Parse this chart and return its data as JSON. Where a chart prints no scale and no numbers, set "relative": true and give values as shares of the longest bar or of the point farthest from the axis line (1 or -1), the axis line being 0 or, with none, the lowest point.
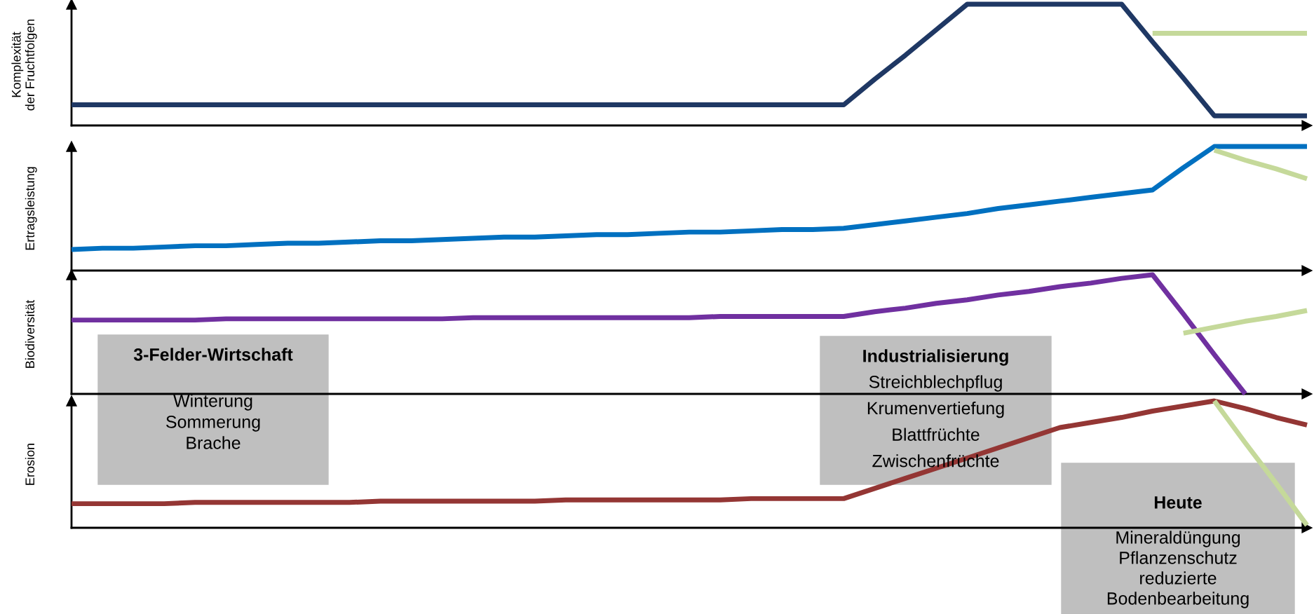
{
  "chart_data": [
    {
      "type": "line",
      "relative": true,
      "ylabel": "Komplexität\nder Fruchtfolgen",
      "categories": [
        null,
        null,
        null,
        null,
        null,
        null,
        null,
        null,
        null,
        null,
        null,
        null,
        null,
        null,
        null,
        null,
        null,
        null,
        null,
        null,
        null,
        null,
        null,
        null,
        null,
        null,
        null,
        null,
        null,
        null,
        null,
        null,
        null,
        null,
        null,
        null,
        null,
        null,
        null,
        null,
        null
      ],
      "marker": "none",
      "line_style": "solid",
      "series": [
        {
          "color": "#1f3864",
          "values": [
            0.17,
            0.17,
            0.17,
            0.17,
            0.17,
            0.17,
            0.17,
            0.17,
            0.17,
            0.17,
            0.17,
            0.17,
            0.17,
            0.17,
            0.17,
            0.17,
            0.17,
            0.17,
            0.17,
            0.17,
            0.17,
            0.17,
            0.17,
            0.17,
            0.17,
            0.17,
            0.38,
            0.58,
            0.79,
            1,
            1,
            1,
            1,
            1,
            1,
            0.69,
            0.39,
            0.08,
            0.08,
            0.08,
            0.08
          ]
        },
        {
          "color": "#c5d99a",
          "values": [
            null,
            null,
            null,
            null,
            null,
            null,
            null,
            null,
            null,
            null,
            null,
            null,
            null,
            null,
            null,
            null,
            null,
            null,
            null,
            null,
            null,
            null,
            null,
            null,
            null,
            null,
            null,
            null,
            null,
            null,
            null,
            null,
            null,
            null,
            null,
            0.76,
            0.76,
            0.76,
            0.76,
            0.76,
            0.76
          ]
        }
      ]
    },
    {
      "type": "line",
      "relative": true,
      "ylabel": "Ertragsleistung",
      "categories": [
        null,
        null,
        null,
        null,
        null,
        null,
        null,
        null,
        null,
        null,
        null,
        null,
        null,
        null,
        null,
        null,
        null,
        null,
        null,
        null,
        null,
        null,
        null,
        null,
        null,
        null,
        null,
        null,
        null,
        null,
        null,
        null,
        null,
        null,
        null,
        null,
        null,
        null,
        null,
        null,
        null
      ],
      "marker": "none",
      "line_style": "solid",
      "series": [
        {
          "color": "#0070c0",
          "values": [
            0.17,
            0.18,
            0.18,
            0.19,
            0.2,
            0.2,
            0.21,
            0.22,
            0.22,
            0.23,
            0.24,
            0.24,
            0.25,
            0.26,
            0.27,
            0.27,
            0.28,
            0.29,
            0.29,
            0.3,
            0.31,
            0.31,
            0.32,
            0.33,
            0.33,
            0.34,
            0.37,
            0.4,
            0.43,
            0.46,
            0.5,
            0.53,
            0.56,
            0.59,
            0.62,
            0.65,
            0.83,
            1,
            1,
            1,
            1
          ]
        },
        {
          "color": "#c5d99a",
          "values": [
            null,
            null,
            null,
            null,
            null,
            null,
            null,
            null,
            null,
            null,
            null,
            null,
            null,
            null,
            null,
            null,
            null,
            null,
            null,
            null,
            null,
            null,
            null,
            null,
            null,
            null,
            null,
            null,
            null,
            null,
            null,
            null,
            null,
            null,
            null,
            null,
            null,
            0.97,
            0.89,
            0.82,
            0.74
          ]
        }
      ]
    },
    {
      "type": "line",
      "relative": true,
      "ylabel": "Biodiversität",
      "categories": [
        null,
        null,
        null,
        null,
        null,
        null,
        null,
        null,
        null,
        null,
        null,
        null,
        null,
        null,
        null,
        null,
        null,
        null,
        null,
        null,
        null,
        null,
        null,
        null,
        null,
        null,
        null,
        null,
        null,
        null,
        null,
        null,
        null,
        null,
        null,
        null,
        null,
        null,
        null,
        null,
        null
      ],
      "marker": "none",
      "line_style": "solid",
      "series": [
        {
          "color": "#7030a0",
          "values": [
            0.62,
            0.62,
            0.62,
            0.62,
            0.62,
            0.63,
            0.63,
            0.63,
            0.63,
            0.63,
            0.63,
            0.63,
            0.63,
            0.64,
            0.64,
            0.64,
            0.64,
            0.64,
            0.64,
            0.64,
            0.64,
            0.65,
            0.65,
            0.65,
            0.65,
            0.65,
            0.69,
            0.72,
            0.76,
            0.79,
            0.83,
            0.86,
            0.9,
            0.93,
            0.97,
            1,
            0.67,
            0.33,
            0,
            null,
            null
          ]
        },
        {
          "color": "#c5d99a",
          "values": [
            null,
            null,
            null,
            null,
            null,
            null,
            null,
            null,
            null,
            null,
            null,
            null,
            null,
            null,
            null,
            null,
            null,
            null,
            null,
            null,
            null,
            null,
            null,
            null,
            null,
            null,
            null,
            null,
            null,
            null,
            null,
            null,
            null,
            null,
            null,
            null,
            0.51,
            0.56,
            0.61,
            0.65,
            0.7
          ]
        }
      ]
    },
    {
      "type": "line",
      "relative": true,
      "ylabel": "Erosion",
      "categories": [
        null,
        null,
        null,
        null,
        null,
        null,
        null,
        null,
        null,
        null,
        null,
        null,
        null,
        null,
        null,
        null,
        null,
        null,
        null,
        null,
        null,
        null,
        null,
        null,
        null,
        null,
        null,
        null,
        null,
        null,
        null,
        null,
        null,
        null,
        null,
        null,
        null,
        null,
        null,
        null,
        null
      ],
      "marker": "none",
      "line_style": "solid",
      "series": [
        {
          "color": "#943634",
          "values": [
            0.19,
            0.19,
            0.19,
            0.19,
            0.2,
            0.2,
            0.2,
            0.2,
            0.2,
            0.2,
            0.21,
            0.21,
            0.21,
            0.21,
            0.21,
            0.21,
            0.22,
            0.22,
            0.22,
            0.22,
            0.22,
            0.22,
            0.23,
            0.23,
            0.23,
            0.23,
            0.31,
            0.39,
            0.47,
            0.55,
            0.63,
            0.71,
            0.79,
            0.83,
            0.87,
            0.92,
            0.96,
            1,
            0.94,
            0.87,
            0.81
          ]
        },
        {
          "color": "#c5d99a",
          "values": [
            null,
            null,
            null,
            null,
            null,
            null,
            null,
            null,
            null,
            null,
            null,
            null,
            null,
            null,
            null,
            null,
            null,
            null,
            null,
            null,
            null,
            null,
            null,
            null,
            null,
            null,
            null,
            null,
            null,
            null,
            null,
            null,
            null,
            null,
            null,
            null,
            null,
            1,
            0.67,
            0.35,
            0.02
          ]
        }
      ],
      "annotations": [
        "3-Felder-Wirtschaft\nWinterung\nSommerung\nBrache",
        "Industrialisierung\nStreichblechpflug\nKrumenvertiefung\nBlattfrüchte\nZwischenfrüchte",
        "Heute\nMineraldüngung\nPflanzenschutz\nreduzierte\nBodenbearbeitung"
      ]
    }
  ]
}
